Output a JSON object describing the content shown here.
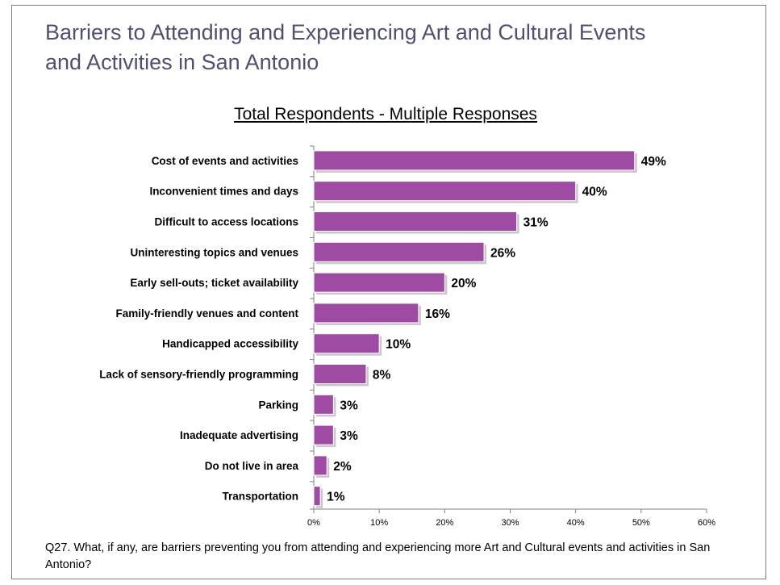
{
  "slide": {
    "title": "Barriers to Attending and Experiencing Art and Cultural Events and Activities in San Antonio",
    "footnote": "Q27. What, if any, are barriers preventing you from attending and experiencing more Art and Cultural events and activities in San Antonio?"
  },
  "colors": {
    "bar": "#a04ba3",
    "bar_shadow": "#c8c8c8",
    "axis": "#7f7f7f"
  },
  "chart_data": {
    "type": "bar",
    "orientation": "horizontal",
    "title": "Total Respondents - Multiple Responses",
    "categories": [
      "Cost of events and activities",
      "Inconvenient times and days",
      "Difficult to access locations",
      "Uninteresting topics and venues",
      "Early sell-outs; ticket availability",
      "Family-friendly venues and content",
      "Handicapped accessibility",
      "Lack of sensory-friendly programming",
      "Parking",
      "Inadequate advertising",
      "Do not live in area",
      "Transportation"
    ],
    "values": [
      49,
      40,
      31,
      26,
      20,
      16,
      10,
      8,
      3,
      3,
      2,
      1
    ],
    "value_labels": [
      "49%",
      "40%",
      "31%",
      "26%",
      "20%",
      "16%",
      "10%",
      "8%",
      "3%",
      "3%",
      "2%",
      "1%"
    ],
    "xlim": [
      0,
      60
    ],
    "xticks": [
      0,
      10,
      20,
      30,
      40,
      50,
      60
    ],
    "xtick_labels": [
      "0%",
      "10%",
      "20%",
      "30%",
      "40%",
      "50%",
      "60%"
    ],
    "grid": false,
    "legend": "none"
  }
}
